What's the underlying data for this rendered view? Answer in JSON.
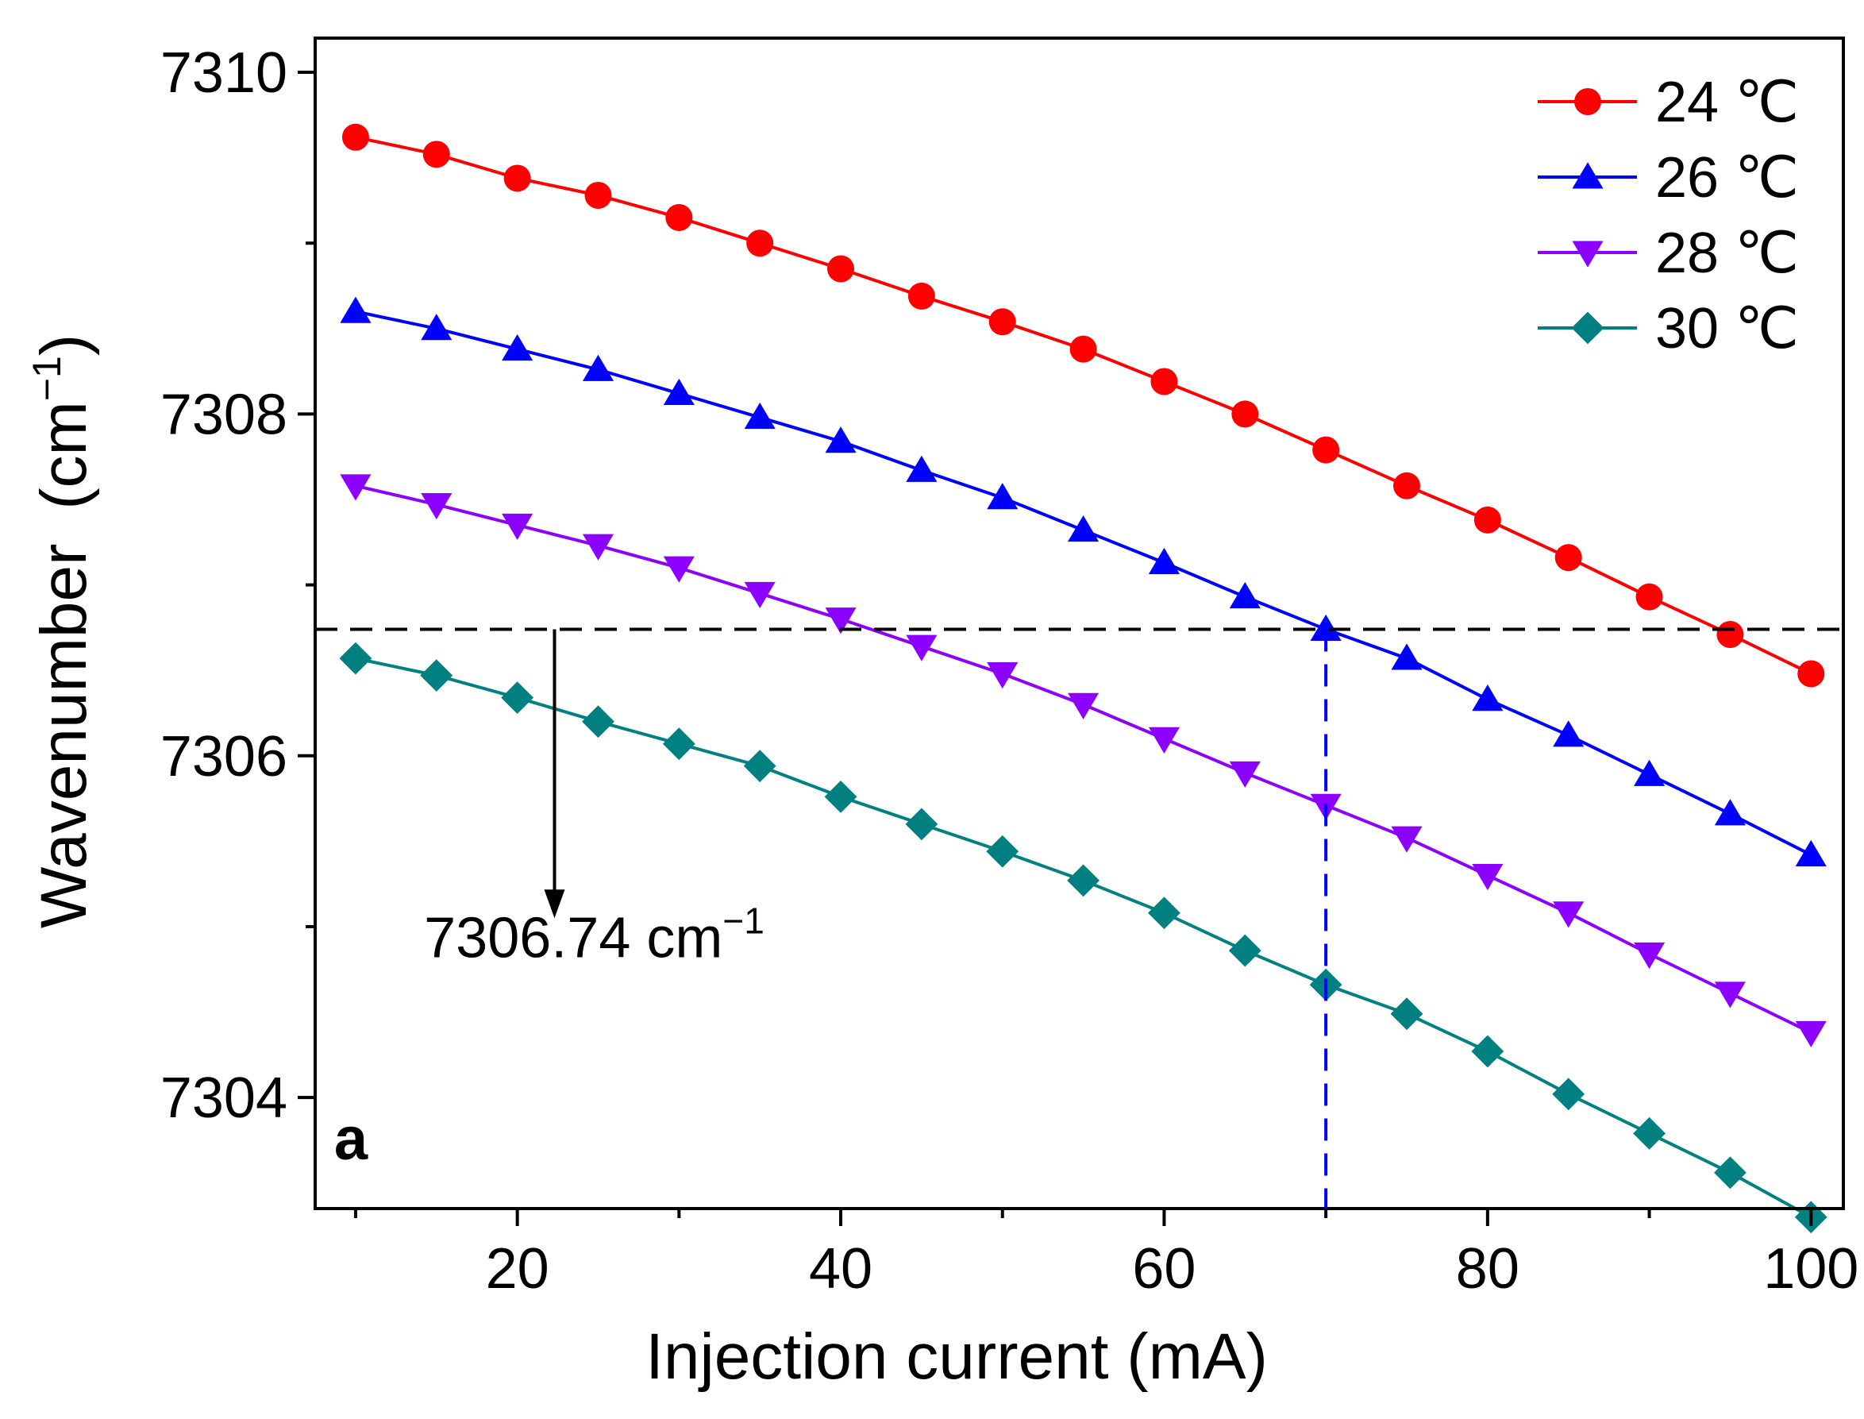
{
  "chart_data": {
    "type": "line",
    "xlabel": "Injection current (mA)",
    "ylabel": "Wavenumber",
    "ylabel_unit": "(cm",
    "ylabel_unit_exp": "−1",
    "ylabel_unit_close": ")",
    "xlim": [
      7.5,
      102
    ],
    "ylim": [
      7303.35,
      7310.2
    ],
    "xticks": [
      20,
      40,
      60,
      80,
      100
    ],
    "yticks": [
      7304,
      7306,
      7308,
      7310
    ],
    "xminor": [
      10,
      30,
      50,
      70,
      90
    ],
    "yminor": [
      7305,
      7307,
      7309
    ],
    "grid": false,
    "legend_position": "top-right",
    "x": [
      10,
      15,
      20,
      25,
      30,
      35,
      40,
      45,
      50,
      55,
      60,
      65,
      70,
      75,
      80,
      85,
      90,
      95,
      100
    ],
    "series": [
      {
        "name": "24 ℃",
        "marker": "circle",
        "color": "#ff0000",
        "values": [
          7309.62,
          7309.52,
          7309.38,
          7309.28,
          7309.15,
          7309.0,
          7308.85,
          7308.69,
          7308.54,
          7308.38,
          7308.19,
          7308.0,
          7307.79,
          7307.58,
          7307.38,
          7307.16,
          7306.93,
          7306.71,
          7306.48
        ]
      },
      {
        "name": "26 ℃",
        "marker": "triangle-up",
        "color": "#0000ff",
        "values": [
          7308.6,
          7308.5,
          7308.38,
          7308.26,
          7308.12,
          7307.98,
          7307.84,
          7307.67,
          7307.51,
          7307.32,
          7307.13,
          7306.93,
          7306.74,
          7306.57,
          7306.33,
          7306.12,
          7305.89,
          7305.66,
          7305.42
        ]
      },
      {
        "name": "28 ℃",
        "marker": "triangle-down",
        "color": "#8b00ff",
        "values": [
          7307.58,
          7307.47,
          7307.35,
          7307.23,
          7307.1,
          7306.95,
          7306.8,
          7306.64,
          7306.48,
          7306.3,
          7306.1,
          7305.9,
          7305.71,
          7305.52,
          7305.3,
          7305.08,
          7304.84,
          7304.61,
          7304.38
        ]
      },
      {
        "name": "30 ℃",
        "marker": "diamond",
        "color": "#008080",
        "values": [
          7306.57,
          7306.47,
          7306.34,
          7306.2,
          7306.07,
          7305.94,
          7305.76,
          7305.6,
          7305.44,
          7305.27,
          7305.08,
          7304.86,
          7304.66,
          7304.49,
          7304.27,
          7304.02,
          7303.79,
          7303.56,
          7303.3
        ]
      }
    ],
    "annotations": {
      "hline_y": 7306.74,
      "vline_x": 70,
      "arrow_x": 22.3,
      "arrow_y_from": 7306.74,
      "arrow_y_to": 7305.05,
      "value_label": "7306.74 cm",
      "value_label_exp": "−1",
      "value_label_x": 22.3,
      "value_label_y": 7304.82,
      "panel_label": "a",
      "panel_label_color": "#ff0000"
    }
  }
}
